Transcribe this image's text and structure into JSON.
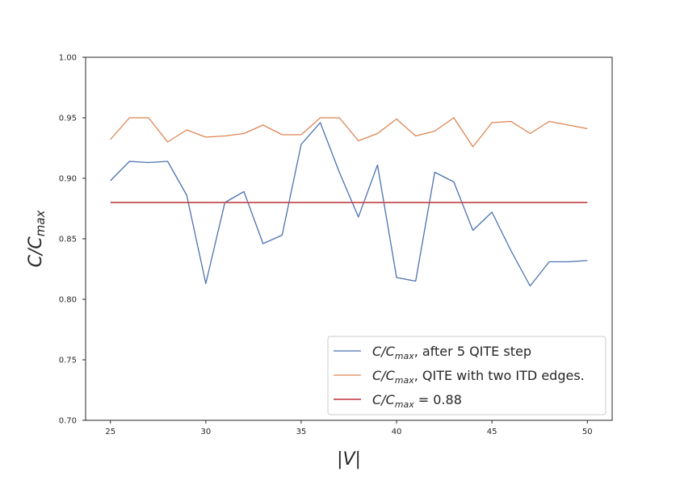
{
  "chart_data": {
    "type": "line",
    "title": "",
    "xlabel": "|V|",
    "ylabel": {
      "main": "C/C",
      "sub": "max"
    },
    "xlim": [
      23.7,
      51.3
    ],
    "ylim": [
      0.7,
      1.0
    ],
    "xticks": [
      25,
      30,
      35,
      40,
      45,
      50
    ],
    "yticks": [
      0.7,
      0.75,
      0.8,
      0.85,
      0.9,
      0.95,
      1.0
    ],
    "x": [
      25,
      26,
      27,
      28,
      29,
      30,
      31,
      32,
      33,
      34,
      35,
      36,
      37,
      38,
      39,
      40,
      41,
      42,
      43,
      44,
      45,
      46,
      47,
      48,
      49,
      50
    ],
    "series": [
      {
        "color": "#4c72b0",
        "legend": {
          "pre": "C/C",
          "sub": "max",
          "post": ", after 5 QITE step"
        },
        "values": [
          0.898,
          0.914,
          0.913,
          0.914,
          0.886,
          0.813,
          0.88,
          0.889,
          0.846,
          0.853,
          0.928,
          0.946,
          0.905,
          0.868,
          0.911,
          0.818,
          0.815,
          0.905,
          0.897,
          0.857,
          0.872,
          0.84,
          0.811,
          0.831,
          0.831,
          0.832
        ]
      },
      {
        "color": "#dd8452",
        "legend": {
          "pre": "C/C",
          "sub": "max",
          "post": ", QITE with two ITD edges."
        },
        "values": [
          0.932,
          0.95,
          0.95,
          0.93,
          0.94,
          0.934,
          0.935,
          0.937,
          0.944,
          0.936,
          0.936,
          0.95,
          0.95,
          0.931,
          0.937,
          0.949,
          0.935,
          0.939,
          0.95,
          0.926,
          0.946,
          0.947,
          0.937,
          0.947,
          0.944,
          0.941
        ]
      },
      {
        "color": "#c44e52",
        "legend": {
          "pre": "C/C",
          "sub": "max",
          "post": " = 0.88"
        },
        "values": [
          0.88,
          0.88,
          0.88,
          0.88,
          0.88,
          0.88,
          0.88,
          0.88,
          0.88,
          0.88,
          0.88,
          0.88,
          0.88,
          0.88,
          0.88,
          0.88,
          0.88,
          0.88,
          0.88,
          0.88,
          0.88,
          0.88,
          0.88,
          0.88,
          0.88,
          0.88
        ]
      }
    ],
    "legend_position": "lower-right",
    "grid": false
  }
}
